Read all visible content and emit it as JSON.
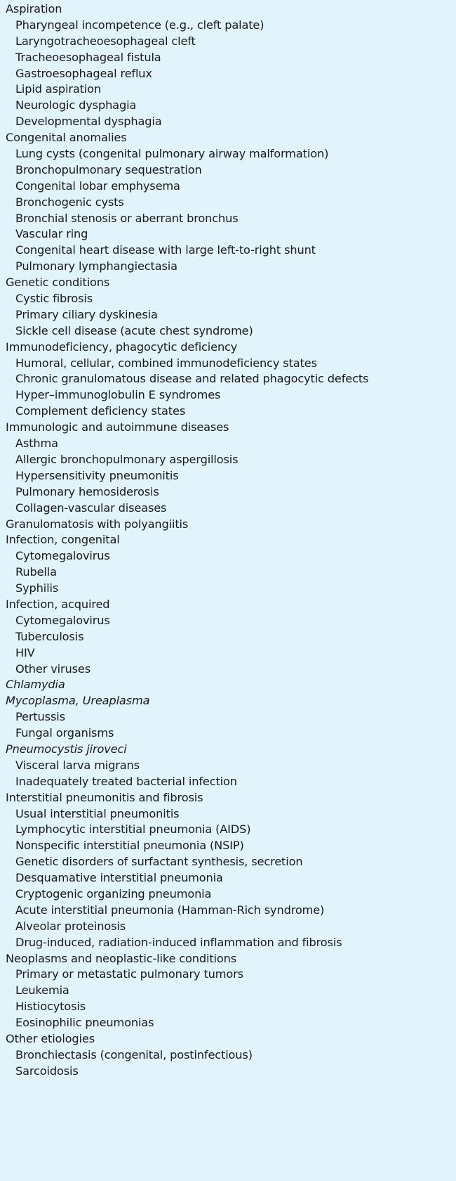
{
  "items": [
    {
      "text": "Aspiration",
      "level": 0
    },
    {
      "text": "Pharyngeal incompetence (e.g., cleft palate)",
      "level": 1
    },
    {
      "text": "Laryngotracheoesophageal cleft",
      "level": 1
    },
    {
      "text": "Tracheoesophageal fistula",
      "level": 1
    },
    {
      "text": "Gastroesophageal reflux",
      "level": 1
    },
    {
      "text": "Lipid aspiration",
      "level": 1
    },
    {
      "text": "Neurologic dysphagia",
      "level": 1
    },
    {
      "text": "Developmental dysphagia",
      "level": 1
    },
    {
      "text": "Congenital anomalies",
      "level": 0
    },
    {
      "text": "Lung cysts (congenital pulmonary airway malformation)",
      "level": 1
    },
    {
      "text": "Bronchopulmonary sequestration",
      "level": 1
    },
    {
      "text": "Congenital lobar emphysema",
      "level": 1
    },
    {
      "text": "Bronchogenic cysts",
      "level": 1
    },
    {
      "text": "Bronchial stenosis or aberrant bronchus",
      "level": 1
    },
    {
      "text": "Vascular ring",
      "level": 1
    },
    {
      "text": "Congenital heart disease with large left-to-right shunt",
      "level": 1
    },
    {
      "text": "Pulmonary lymphangiectasia",
      "level": 1
    },
    {
      "text": "Genetic conditions",
      "level": 0
    },
    {
      "text": "Cystic fibrosis",
      "level": 1
    },
    {
      "text": "Primary ciliary dyskinesia",
      "level": 1
    },
    {
      "text": "Sickle cell disease (acute chest syndrome)",
      "level": 1
    },
    {
      "text": "Immunodeficiency, phagocytic deficiency",
      "level": 0
    },
    {
      "text": "Humoral, cellular, combined immunodeficiency states",
      "level": 1
    },
    {
      "text": "Chronic granulomatous disease and related phagocytic defects",
      "level": 1
    },
    {
      "text": "Hyper–immunoglobulin E syndromes",
      "level": 1
    },
    {
      "text": "Complement deficiency states",
      "level": 1
    },
    {
      "text": "Immunologic and autoimmune diseases",
      "level": 0
    },
    {
      "text": "Asthma",
      "level": 1
    },
    {
      "text": "Allergic bronchopulmonary aspergillosis",
      "level": 1
    },
    {
      "text": "Hypersensitivity pneumonitis",
      "level": 1
    },
    {
      "text": "Pulmonary hemosiderosis",
      "level": 1
    },
    {
      "text": "Collagen-vascular diseases",
      "level": 1
    },
    {
      "text": "Granulomatosis with polyangiitis",
      "level": 0
    },
    {
      "text": "Infection, congenital",
      "level": 0
    },
    {
      "text": "Cytomegalovirus",
      "level": 1
    },
    {
      "text": "Rubella",
      "level": 1
    },
    {
      "text": "Syphilis",
      "level": 1
    },
    {
      "text": "Infection, acquired",
      "level": 0
    },
    {
      "text": "Cytomegalovirus",
      "level": 1
    },
    {
      "text": "Tuberculosis",
      "level": 1
    },
    {
      "text": "HIV",
      "level": 1
    },
    {
      "text": "Other viruses",
      "level": 1
    },
    {
      "text": "Chlamydia",
      "level": 0,
      "italic": true
    },
    {
      "text": "Mycoplasma, Ureaplasma",
      "level": 0,
      "italic": true
    },
    {
      "text": "Pertussis",
      "level": 1
    },
    {
      "text": "Fungal organisms",
      "level": 1
    },
    {
      "text": "Pneumocystis jiroveci",
      "level": 0,
      "italic": true
    },
    {
      "text": "Visceral larva migrans",
      "level": 1
    },
    {
      "text": "Inadequately treated bacterial infection",
      "level": 1
    },
    {
      "text": "Interstitial pneumonitis and fibrosis",
      "level": 0
    },
    {
      "text": "Usual interstitial pneumonitis",
      "level": 1
    },
    {
      "text": "Lymphocytic interstitial pneumonia (AIDS)",
      "level": 1
    },
    {
      "text": "Nonspecific interstitial pneumonia (NSIP)",
      "level": 1
    },
    {
      "text": "Genetic disorders of surfactant synthesis, secretion",
      "level": 1
    },
    {
      "text": "Desquamative interstitial pneumonia",
      "level": 1
    },
    {
      "text": "Cryptogenic organizing pneumonia",
      "level": 1
    },
    {
      "text": "Acute interstitial pneumonia (Hamman-Rich syndrome)",
      "level": 1
    },
    {
      "text": "Alveolar proteinosis",
      "level": 1
    },
    {
      "text": "Drug-induced, radiation-induced inflammation and fibrosis",
      "level": 1
    },
    {
      "text": "Neoplasms and neoplastic-like conditions",
      "level": 0
    },
    {
      "text": "Primary or metastatic pulmonary tumors",
      "level": 1
    },
    {
      "text": "Leukemia",
      "level": 1
    },
    {
      "text": "Histiocytosis",
      "level": 1
    },
    {
      "text": "Eosinophilic pneumonias",
      "level": 1
    },
    {
      "text": "Other etiologies",
      "level": 0
    },
    {
      "text": "Bronchiectasis (congenital, postinfectious)",
      "level": 1
    },
    {
      "text": "Sarcoidosis",
      "level": 1
    }
  ]
}
